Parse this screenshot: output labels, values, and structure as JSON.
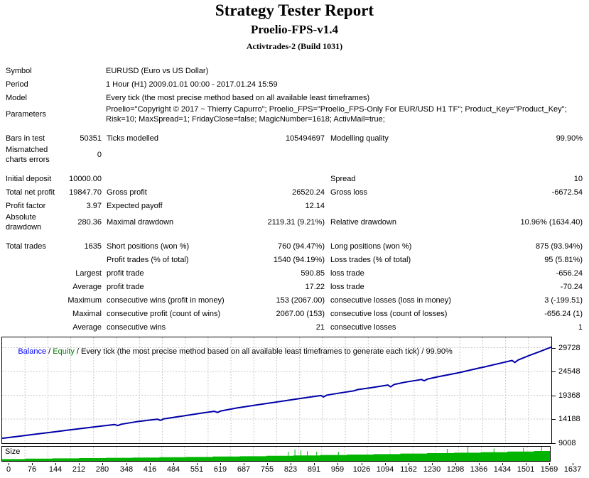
{
  "header": {
    "title": "Strategy Tester Report",
    "ea_name": "Proelio-FPS-v1.4",
    "server": "Activtrades-2 (Build 1031)"
  },
  "info": {
    "rows": [
      [
        "Symbol",
        "EURUSD (Euro vs US Dollar)"
      ],
      [
        "Period",
        "1 Hour (H1) 2009.01.01 00:00 - 2017.01.24 15:59"
      ],
      [
        "Model",
        "Every tick (the most precise method based on all available least timeframes)"
      ],
      [
        "Parameters",
        "Proelio=\"Copyright © 2017 ~ Thierry Capurro\"; Proelio_FPS=\"Proelio_FPS-Only For EUR/USD H1 TF\"; Product_Key=\"Product_Key\"; Risk=10; MaxSpread=1; FridayClose=false; MagicNumber=1618; ActivMail=true;"
      ]
    ]
  },
  "stats": {
    "rows": [
      [
        "Bars in test",
        "50351",
        "Ticks modelled",
        "105494697",
        "Modelling quality",
        "99.90%"
      ],
      [
        "Mismatched charts errors",
        "0",
        "",
        "",
        "",
        ""
      ],
      [
        "Initial deposit",
        "10000.00",
        "",
        "",
        "Spread",
        "10"
      ],
      [
        "Total net profit",
        "19847.70",
        "Gross profit",
        "26520.24",
        "Gross loss",
        "-6672.54"
      ],
      [
        "Profit factor",
        "3.97",
        "Expected payoff",
        "12.14",
        "",
        ""
      ],
      [
        "Absolute drawdown",
        "280.36",
        "Maximal drawdown",
        "2119.31 (9.21%)",
        "Relative drawdown",
        "10.96% (1634.40)"
      ],
      [
        "Total trades",
        "1635",
        "Short positions (won %)",
        "760 (94.47%)",
        "Long positions (won %)",
        "875 (93.94%)"
      ],
      [
        "",
        "",
        "Profit trades (% of total)",
        "1540 (94.19%)",
        "Loss trades (% of total)",
        "95 (5.81%)"
      ],
      [
        "",
        "Largest",
        "profit trade",
        "590.85",
        "loss trade",
        "-656.24"
      ],
      [
        "",
        "Average",
        "profit trade",
        "17.22",
        "loss trade",
        "-70.24"
      ],
      [
        "",
        "Maximum",
        "consecutive wins (profit in money)",
        "153 (2067.00)",
        "consecutive losses (loss in money)",
        "3 (-199.51)"
      ],
      [
        "",
        "Maximal",
        "consecutive profit (count of wins)",
        "2067.00 (153)",
        "consecutive loss (count of losses)",
        "-656.24 (1)"
      ],
      [
        "",
        "Average",
        "consecutive wins",
        "21",
        "consecutive losses",
        "1"
      ]
    ]
  },
  "chart_data": {
    "type": "line",
    "legend": {
      "balance_label": "Balance",
      "equity_label": "Equity",
      "sep": " / ",
      "suffix": "Every tick (the most precise method based on all available least timeframes to generate each tick) / 99.90%"
    },
    "y_ticks": [
      9008,
      14188,
      19368,
      24548,
      29728
    ],
    "x_ticks": [
      0,
      76,
      144,
      212,
      280,
      348,
      416,
      484,
      551,
      619,
      687,
      755,
      823,
      891,
      959,
      1026,
      1094,
      1162,
      1230,
      1298,
      1366,
      1434,
      1501,
      1569,
      1637
    ],
    "x_range": [
      0,
      1637
    ],
    "size_axis_label": "Size",
    "balance": [
      [
        0,
        10000
      ],
      [
        50,
        10450
      ],
      [
        100,
        10900
      ],
      [
        150,
        11350
      ],
      [
        200,
        11800
      ],
      [
        250,
        12250
      ],
      [
        300,
        12700
      ],
      [
        335,
        13000
      ],
      [
        345,
        12760
      ],
      [
        355,
        13060
      ],
      [
        400,
        13600
      ],
      [
        450,
        14050
      ],
      [
        463,
        14160
      ],
      [
        472,
        13900
      ],
      [
        482,
        14230
      ],
      [
        550,
        14980
      ],
      [
        600,
        15550
      ],
      [
        632,
        15880
      ],
      [
        642,
        15620
      ],
      [
        652,
        15950
      ],
      [
        700,
        16600
      ],
      [
        750,
        17150
      ],
      [
        800,
        17700
      ],
      [
        850,
        18250
      ],
      [
        900,
        18800
      ],
      [
        950,
        19300
      ],
      [
        958,
        19000
      ],
      [
        968,
        19400
      ],
      [
        1000,
        19780
      ],
      [
        1050,
        20350
      ],
      [
        1060,
        20600
      ],
      [
        1100,
        21000
      ],
      [
        1150,
        21600
      ],
      [
        1158,
        21200
      ],
      [
        1168,
        21700
      ],
      [
        1200,
        22200
      ],
      [
        1250,
        22800
      ],
      [
        1258,
        22520
      ],
      [
        1268,
        22900
      ],
      [
        1300,
        23400
      ],
      [
        1360,
        24250
      ],
      [
        1420,
        25260
      ],
      [
        1434,
        25480
      ],
      [
        1490,
        26430
      ],
      [
        1520,
        26950
      ],
      [
        1528,
        26500
      ],
      [
        1538,
        27050
      ],
      [
        1570,
        28000
      ],
      [
        1600,
        28820
      ],
      [
        1637,
        29850
      ]
    ],
    "size_series": [
      [
        0,
        0.13
      ],
      [
        70,
        0.16
      ],
      [
        150,
        0.18
      ],
      [
        230,
        0.2
      ],
      [
        310,
        0.22
      ],
      [
        390,
        0.24
      ],
      [
        470,
        0.26
      ],
      [
        550,
        0.28
      ],
      [
        630,
        0.31
      ],
      [
        710,
        0.33
      ],
      [
        790,
        0.36
      ],
      [
        870,
        0.39
      ],
      [
        950,
        0.42
      ],
      [
        1030,
        0.45
      ],
      [
        1110,
        0.48
      ],
      [
        1190,
        0.52
      ],
      [
        1270,
        0.55
      ],
      [
        1350,
        0.58
      ],
      [
        1430,
        0.62
      ],
      [
        1510,
        0.66
      ],
      [
        1590,
        0.7
      ],
      [
        1637,
        0.72
      ]
    ],
    "size_spikes": [
      [
        855,
        0.28
      ],
      [
        875,
        0.42
      ],
      [
        893,
        0.35
      ],
      [
        912,
        0.3
      ],
      [
        940,
        0.25
      ],
      [
        1005,
        0.22
      ],
      [
        1330,
        0.3
      ],
      [
        1392,
        0.5
      ],
      [
        1470,
        0.25
      ],
      [
        1558,
        0.28
      ],
      [
        1612,
        0.33
      ]
    ],
    "colors": {
      "balance": "#0000a8",
      "equity": "#00a000",
      "grid": "#c9c9c9",
      "size_fill": "#00b400",
      "legend_balance": "#0000ff",
      "legend_equity": "#008000"
    }
  }
}
